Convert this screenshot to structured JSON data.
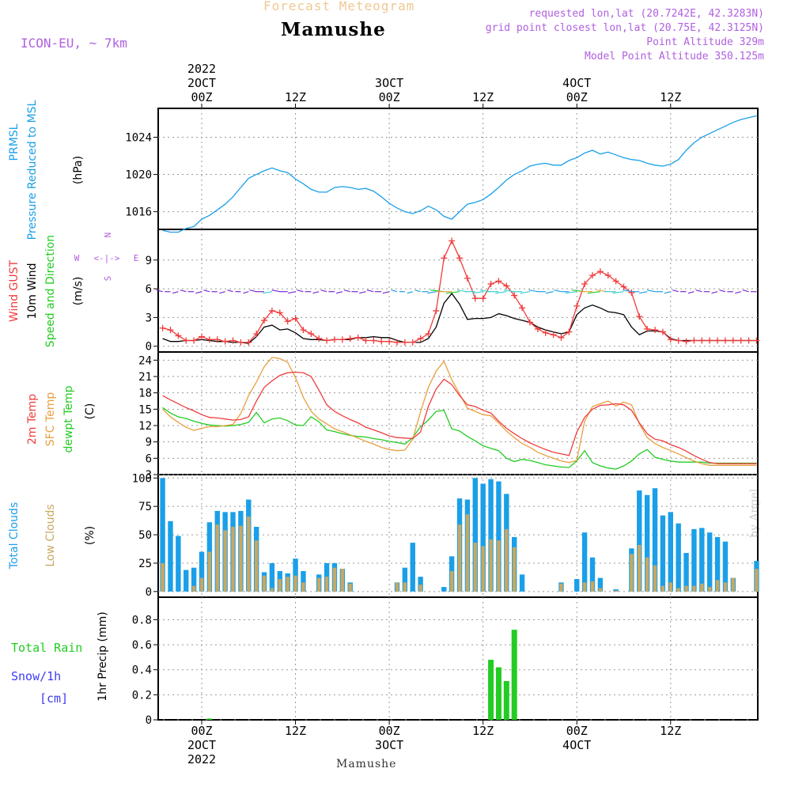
{
  "header": {
    "product": "Forecast Meteogram",
    "location": "Mamushe",
    "model": "ICON-EU, ~ 7km",
    "requested": "requested lon,lat (20.7242E, 42.3283N)",
    "grid_point": "grid point closest lon,lat (20.75E, 42.3125N)",
    "point_altitude": "Point Altitude 329m",
    "model_altitude": "Model Point Altitude 350.125m",
    "watermark": "by Angel",
    "footer": "Mamushe"
  },
  "time_axis": {
    "top_labels": [
      {
        "lines": [
          "2022",
          "2OCT",
          "00Z"
        ]
      },
      {
        "lines": [
          "12Z"
        ]
      },
      {
        "lines": [
          "3OCT",
          "00Z"
        ]
      },
      {
        "lines": [
          "12Z"
        ]
      },
      {
        "lines": [
          "4OCT",
          "00Z"
        ]
      },
      {
        "lines": [
          "12Z"
        ]
      }
    ],
    "bottom_labels": [
      {
        "lines": [
          "00Z",
          "2OCT",
          "2022"
        ]
      },
      {
        "lines": [
          "12Z"
        ]
      },
      {
        "lines": [
          "00Z",
          "3OCT"
        ]
      },
      {
        "lines": [
          "12Z"
        ]
      },
      {
        "lines": [
          "00Z",
          "4OCT"
        ]
      },
      {
        "lines": [
          "12Z"
        ]
      }
    ]
  },
  "panel_labels": {
    "pressure": {
      "l1": "PRMSL",
      "l2": "Pressure Reduced to MSL",
      "unit": "(hPa)"
    },
    "wind": {
      "gust": "Wind GUST",
      "wind10": "10m Wind",
      "speed": "Speed and Direction",
      "unit": "(m/s)",
      "compass": {
        "n": "N",
        "s": "S",
        "e": "E",
        "w": "W",
        "arrow": "<-|->"
      }
    },
    "temp": {
      "t2m": "2m Temp",
      "sfc": "SFC Temp",
      "dew": "dewpt Temp",
      "unit": "(C)"
    },
    "clouds": {
      "total": "Total Clouds",
      "low": "Low Clouds",
      "unit": "(%)"
    },
    "precip": {
      "rain": "Total  Rain",
      "snow": "Snow/1h",
      "cm": "[cm]",
      "ylabel": "1hr Precip (mm)"
    }
  },
  "colors": {
    "pressure": "#1a9fe8",
    "gust": "#f03c3c",
    "wind": "#000000",
    "t2m": "#f03c3c",
    "sfc": "#e8a040",
    "dew": "#22cc22",
    "total_clouds": "#1a9fe8",
    "low_clouds": "#c8a860",
    "rain": "#22cc22",
    "snow": "#3c3cf0",
    "header_orange": "#f0c890",
    "header_purple": "#b060e0"
  },
  "chart_data": [
    {
      "type": "line",
      "name": "pressure",
      "ylim": [
        1014.1,
        1027.1
      ],
      "yticks": [
        1016,
        1020,
        1024
      ],
      "x_hours": [
        -5,
        -4,
        -3,
        -2,
        -1,
        0,
        1,
        2,
        3,
        4,
        5,
        6,
        7,
        8,
        9,
        10,
        11,
        12,
        13,
        14,
        15,
        16,
        17,
        18,
        19,
        20,
        21,
        22,
        23,
        24,
        25,
        26,
        27,
        28,
        29,
        30,
        31,
        32,
        33,
        34,
        35,
        36,
        37,
        38,
        39,
        40,
        41,
        42,
        43,
        44,
        45,
        46,
        47,
        48,
        49,
        50,
        51,
        52,
        53,
        54,
        55,
        56,
        57,
        58,
        59,
        60,
        61,
        62,
        63,
        64,
        65,
        66,
        67,
        68,
        69,
        70,
        71
      ],
      "series": [
        {
          "values": [
            1014.0,
            1013.8,
            1013.8,
            1014.2,
            1014.4,
            1015.2,
            1015.6,
            1016.2,
            1016.8,
            1017.6,
            1018.6,
            1019.6,
            1020.0,
            1020.4,
            1020.7,
            1020.4,
            1020.2,
            1019.5,
            1019.0,
            1018.4,
            1018.1,
            1018.1,
            1018.6,
            1018.7,
            1018.6,
            1018.4,
            1018.5,
            1018.2,
            1017.6,
            1016.9,
            1016.4,
            1016.0,
            1015.8,
            1016.1,
            1016.6,
            1016.2,
            1015.5,
            1015.2,
            1016.0,
            1016.8,
            1017.0,
            1017.3,
            1017.9,
            1018.6,
            1019.4,
            1020.0,
            1020.4,
            1020.9,
            1021.1,
            1021.2,
            1021.0,
            1021.0,
            1021.5,
            1021.8,
            1022.3,
            1022.6,
            1022.2,
            1022.4,
            1022.1,
            1021.8,
            1021.6,
            1021.5,
            1021.2,
            1021.0,
            1020.9,
            1021.1,
            1021.6,
            1022.6,
            1023.4,
            1024.0,
            1024.4,
            1024.8,
            1025.2,
            1025.6,
            1025.9,
            1026.1,
            1026.3
          ]
        }
      ]
    },
    {
      "type": "line",
      "name": "wind",
      "ylim": [
        -0.6,
        12.2
      ],
      "yticks": [
        0,
        3,
        6,
        9
      ],
      "x_hours": [
        -5,
        -4,
        -3,
        -2,
        -1,
        0,
        1,
        2,
        3,
        4,
        5,
        6,
        7,
        8,
        9,
        10,
        11,
        12,
        13,
        14,
        15,
        16,
        17,
        18,
        19,
        20,
        21,
        22,
        23,
        24,
        25,
        26,
        27,
        28,
        29,
        30,
        31,
        32,
        33,
        34,
        35,
        36,
        37,
        38,
        39,
        40,
        41,
        42,
        43,
        44,
        45,
        46,
        47,
        48,
        49,
        50,
        51,
        52,
        53,
        54,
        55,
        56,
        57,
        58,
        59,
        60,
        61,
        62,
        63,
        64,
        65,
        66,
        67,
        68,
        69,
        70,
        71
      ],
      "series": [
        {
          "name": "gust",
          "values": [
            1.9,
            1.7,
            1.1,
            0.6,
            0.6,
            1.0,
            0.7,
            0.7,
            0.5,
            0.6,
            0.4,
            0.4,
            1.3,
            2.7,
            3.7,
            3.5,
            2.6,
            2.9,
            1.7,
            1.3,
            0.8,
            0.6,
            0.7,
            0.7,
            0.8,
            0.9,
            0.6,
            0.6,
            0.5,
            0.5,
            0.4,
            0.4,
            0.4,
            0.8,
            1.3,
            3.7,
            9.2,
            11.0,
            9.2,
            7.1,
            5.0,
            5.0,
            6.5,
            6.8,
            6.3,
            5.3,
            4.0,
            2.5,
            1.8,
            1.4,
            1.2,
            0.9,
            1.5,
            4.2,
            6.5,
            7.4,
            7.8,
            7.4,
            6.8,
            6.2,
            5.6,
            3.1,
            1.8,
            1.7,
            1.5,
            0.7,
            0.6,
            0.5,
            0.6,
            0.6,
            0.6,
            0.6,
            0.6,
            0.6,
            0.6,
            0.6,
            0.6
          ]
        },
        {
          "name": "wind",
          "values": [
            0.8,
            0.5,
            0.5,
            0.6,
            0.6,
            0.7,
            0.6,
            0.5,
            0.5,
            0.4,
            0.4,
            0.3,
            1.0,
            2.0,
            2.2,
            1.7,
            1.8,
            1.4,
            0.8,
            0.7,
            0.7,
            0.6,
            0.7,
            0.7,
            0.7,
            0.9,
            0.9,
            1.0,
            0.9,
            0.9,
            0.6,
            0.4,
            0.4,
            0.4,
            0.8,
            2.0,
            4.5,
            5.5,
            4.4,
            2.8,
            2.9,
            2.9,
            3.0,
            3.4,
            3.2,
            2.9,
            2.7,
            2.5,
            2.0,
            1.7,
            1.5,
            1.3,
            1.5,
            3.3,
            4.0,
            4.3,
            4.0,
            3.6,
            3.5,
            3.3,
            2.0,
            1.2,
            1.6,
            1.6,
            1.5,
            0.8,
            0.6,
            0.6,
            0.6,
            0.6,
            0.6,
            0.6,
            0.6,
            0.6,
            0.6,
            0.6,
            0.6
          ]
        }
      ]
    },
    {
      "type": "line",
      "name": "temperature",
      "ylim": [
        3,
        25.5
      ],
      "yticks": [
        3,
        6,
        9,
        12,
        15,
        18,
        21,
        24
      ],
      "x_hours": [
        -5,
        -4,
        -3,
        -2,
        -1,
        0,
        1,
        2,
        3,
        4,
        5,
        6,
        7,
        8,
        9,
        10,
        11,
        12,
        13,
        14,
        15,
        16,
        17,
        18,
        19,
        20,
        21,
        22,
        23,
        24,
        25,
        26,
        27,
        28,
        29,
        30,
        31,
        32,
        33,
        34,
        35,
        36,
        37,
        38,
        39,
        40,
        41,
        42,
        43,
        44,
        45,
        46,
        47,
        48,
        49,
        50,
        51,
        52,
        53,
        54,
        55,
        56,
        57,
        58,
        59,
        60,
        61,
        62,
        63,
        64,
        65,
        66,
        67,
        68,
        69,
        70,
        71
      ],
      "series": [
        {
          "name": "2m",
          "values": [
            17.5,
            16.7,
            16.0,
            15.3,
            14.7,
            14.0,
            13.5,
            13.4,
            13.2,
            13.0,
            13.1,
            13.6,
            16.5,
            19.0,
            20.2,
            21.2,
            21.7,
            21.8,
            21.7,
            21.0,
            18.5,
            15.8,
            14.6,
            13.8,
            13.1,
            12.5,
            11.7,
            11.2,
            10.7,
            10.1,
            9.8,
            9.7,
            9.6,
            10.8,
            15.5,
            18.7,
            20.5,
            19.5,
            17.5,
            15.8,
            15.5,
            14.8,
            14.3,
            12.8,
            11.5,
            10.5,
            9.6,
            8.8,
            8.2,
            7.6,
            7.1,
            6.8,
            6.5,
            10.8,
            13.5,
            15.0,
            15.7,
            15.8,
            16.0,
            15.8,
            14.8,
            12.5,
            10.5,
            9.5,
            9.2,
            8.5,
            8.0,
            7.3,
            6.5,
            5.8,
            5.2,
            5.0,
            5.0,
            5.0,
            5.0,
            5.0,
            5.0
          ]
        },
        {
          "name": "sfc",
          "values": [
            15.0,
            13.6,
            12.6,
            11.7,
            11.1,
            11.5,
            11.8,
            11.8,
            12.0,
            12.2,
            14.2,
            17.5,
            20.0,
            22.8,
            24.5,
            24.3,
            23.6,
            20.8,
            17.2,
            14.6,
            13.2,
            12.3,
            11.4,
            10.9,
            10.3,
            9.7,
            9.1,
            8.6,
            8.0,
            7.6,
            7.4,
            7.5,
            9.5,
            14.5,
            19.0,
            22.0,
            23.8,
            20.4,
            17.8,
            15.2,
            14.6,
            14.0,
            13.8,
            12.5,
            11.0,
            9.8,
            8.7,
            8.0,
            7.1,
            6.5,
            6.0,
            5.5,
            5.2,
            5.6,
            12.8,
            15.5,
            16.0,
            16.5,
            15.6,
            16.3,
            15.8,
            12.3,
            9.8,
            8.7,
            8.0,
            7.4,
            6.8,
            6.1,
            5.5,
            5.0,
            4.7,
            4.7,
            4.7,
            4.7,
            4.7,
            4.7,
            4.7
          ]
        },
        {
          "name": "dew",
          "values": [
            15.3,
            14.3,
            13.6,
            13.3,
            12.8,
            12.4,
            12.1,
            12.0,
            11.9,
            12.0,
            12.2,
            12.6,
            14.4,
            12.5,
            13.2,
            13.4,
            12.9,
            12.1,
            12.0,
            13.6,
            12.7,
            11.2,
            10.9,
            10.5,
            10.2,
            10.0,
            9.9,
            9.6,
            9.4,
            9.1,
            8.9,
            8.6,
            9.8,
            11.8,
            13.0,
            14.6,
            14.8,
            11.4,
            11.0,
            10.0,
            9.2,
            8.3,
            7.8,
            7.4,
            6.0,
            5.4,
            5.8,
            5.6,
            5.2,
            4.8,
            4.6,
            4.4,
            4.3,
            5.5,
            7.4,
            5.2,
            4.6,
            4.2,
            4.0,
            4.6,
            5.5,
            6.8,
            7.6,
            6.2,
            5.8,
            5.5,
            5.3,
            5.3,
            5.3,
            5.3,
            5.1,
            5.1,
            5.1,
            5.1,
            5.1,
            5.1,
            5.1
          ]
        }
      ]
    },
    {
      "type": "bar",
      "name": "clouds",
      "ylim": [
        -5,
        103
      ],
      "yticks": [
        0,
        25,
        50,
        75,
        100
      ],
      "x_hours": [
        -5,
        -4,
        -3,
        -2,
        -1,
        0,
        1,
        2,
        3,
        4,
        5,
        6,
        7,
        8,
        9,
        10,
        11,
        12,
        13,
        14,
        15,
        16,
        17,
        18,
        19,
        20,
        21,
        22,
        23,
        24,
        25,
        26,
        27,
        28,
        29,
        30,
        31,
        32,
        33,
        34,
        35,
        36,
        37,
        38,
        39,
        40,
        41,
        42,
        43,
        44,
        45,
        46,
        47,
        48,
        49,
        50,
        51,
        52,
        53,
        54,
        55,
        56,
        57,
        58,
        59,
        60,
        61,
        62,
        63,
        64,
        65,
        66,
        67,
        68,
        69,
        70,
        71
      ],
      "series": [
        {
          "name": "total",
          "values": [
            100,
            62,
            49,
            19,
            21,
            35,
            61,
            71,
            70,
            70,
            71,
            81,
            57,
            17,
            25,
            18,
            16,
            29,
            18,
            0,
            15,
            25,
            25,
            20,
            8,
            0,
            0,
            0,
            0,
            0,
            8,
            21,
            43,
            13,
            0,
            0,
            4,
            31,
            82,
            81,
            100,
            95,
            99,
            97,
            86,
            48,
            15,
            0,
            0,
            0,
            0,
            8,
            0,
            11,
            52,
            30,
            12,
            0,
            2,
            0,
            38,
            89,
            85,
            91,
            67,
            70,
            60,
            34,
            55,
            56,
            52,
            48,
            44,
            12,
            0,
            0,
            27
          ]
        },
        {
          "name": "low",
          "values": [
            25,
            0,
            0,
            0,
            5,
            12,
            35,
            59,
            54,
            57,
            58,
            66,
            45,
            14,
            3,
            11,
            13,
            14,
            8,
            0,
            12,
            13,
            21,
            20,
            7,
            0,
            0,
            0,
            0,
            0,
            8,
            8,
            0,
            6,
            0,
            0,
            0,
            18,
            59,
            68,
            43,
            40,
            46,
            45,
            55,
            39,
            0,
            0,
            0,
            0,
            0,
            7,
            0,
            0,
            8,
            9,
            3,
            0,
            1,
            0,
            33,
            41,
            30,
            23,
            5,
            8,
            3,
            5,
            5,
            7,
            4,
            10,
            8,
            12,
            0,
            0,
            20
          ]
        }
      ]
    },
    {
      "type": "bar",
      "name": "precipitation",
      "ylim": [
        0,
        0.98
      ],
      "yticks": [
        0,
        0.2,
        0.4,
        0.6,
        0.8
      ],
      "bars": [
        {
          "x_hours": 1,
          "value": 0.01
        },
        {
          "x_hours": 37,
          "value": 0.48
        },
        {
          "x_hours": 38,
          "value": 0.42
        },
        {
          "x_hours": 39,
          "value": 0.31
        },
        {
          "x_hours": 40,
          "value": 0.72
        }
      ]
    }
  ]
}
